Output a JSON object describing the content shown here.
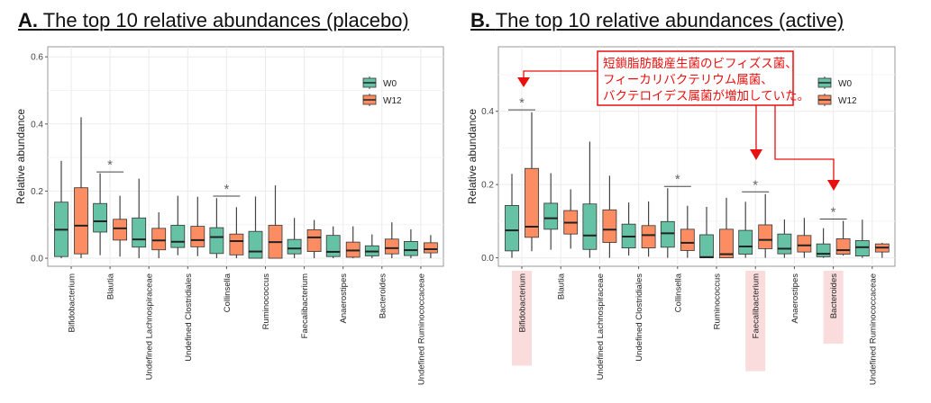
{
  "colors": {
    "W0": "#66c2a5",
    "W12": "#fc8d62",
    "highlight": "#fadcdc",
    "callout": "#e8100e"
  },
  "callout": {
    "lines": [
      "短鎖脂肪酸産生菌のビフィズス菌、",
      "フィーカリバクテリウム属菌、",
      "バクテロイデス属菌が増加していた。"
    ]
  },
  "chart_data": [
    {
      "type": "box",
      "panel_label": "A.",
      "title": "The top 10 relative abundances (placebo)",
      "ylabel": "Relative abundance",
      "ylim": [
        -0.024,
        0.63
      ],
      "yticks": [
        "0.0",
        "0.2",
        "0.4",
        "0.6"
      ],
      "legend": [
        "W0",
        "W12"
      ],
      "legend_position": "top-right",
      "categories": [
        "Bifidobacterium",
        "Blautia",
        "Undefined Lachnospiraceae",
        "Undefined Clostridiales",
        "Collinsella",
        "Ruminococcus",
        "Faecalibacterium",
        "Anaerostipes",
        "Bacteroides",
        "Undefined Ruminococcaceae"
      ],
      "highlighted": [],
      "significance": [
        {
          "category": "Blautia",
          "y": 0.257,
          "label": "*"
        },
        {
          "category": "Collinsella",
          "y": 0.185,
          "label": "*"
        }
      ],
      "series": [
        {
          "name": "W0",
          "boxes": [
            [
              0,
              0.005,
              0.085,
              0.167,
              0.29
            ],
            [
              0.009,
              0.078,
              0.11,
              0.163,
              0.253
            ],
            [
              0,
              0.033,
              0.056,
              0.12,
              0.237
            ],
            [
              0.009,
              0.032,
              0.049,
              0.098,
              0.186
            ],
            [
              0,
              0.014,
              0.063,
              0.091,
              0.179
            ],
            [
              0,
              0,
              0.02,
              0.08,
              0.184
            ],
            [
              0,
              0.013,
              0.029,
              0.056,
              0.12
            ],
            [
              0,
              0.005,
              0.019,
              0.068,
              0.095
            ],
            [
              0,
              0.007,
              0.02,
              0.037,
              0.071
            ],
            [
              0,
              0.008,
              0.024,
              0.05,
              0.086
            ]
          ]
        },
        {
          "name": "W12",
          "boxes": [
            [
              0,
              0.013,
              0.097,
              0.21,
              0.42
            ],
            [
              0.005,
              0.054,
              0.089,
              0.116,
              0.186
            ],
            [
              0,
              0.025,
              0.053,
              0.089,
              0.137
            ],
            [
              0.006,
              0.034,
              0.054,
              0.095,
              0.183
            ],
            [
              0,
              0.01,
              0.051,
              0.072,
              0.152
            ],
            [
              0,
              0,
              0.048,
              0.098,
              0.217
            ],
            [
              0,
              0.02,
              0.062,
              0.085,
              0.114
            ],
            [
              0,
              0.003,
              0.023,
              0.048,
              0.095
            ],
            [
              0,
              0.013,
              0.03,
              0.057,
              0.107
            ],
            [
              0,
              0.016,
              0.027,
              0.046,
              0.069
            ]
          ]
        }
      ]
    },
    {
      "type": "box",
      "panel_label": "B.",
      "title": "The top 10 relative abundances (active)",
      "ylabel": "Relative abundance",
      "ylim": [
        -0.023,
        0.576
      ],
      "yticks": [
        "0.0",
        "0.2",
        "0.4"
      ],
      "legend": [
        "W0",
        "W12"
      ],
      "legend_position": "top-right",
      "categories": [
        "Bifidobacterium",
        "Blautia",
        "Undefined Lachnospiraceae",
        "Undefined Clostridiales",
        "Collinsella",
        "Ruminococcus",
        "Faecalibacterium",
        "Anaerostipes",
        "Bacteroides",
        "Undefined Ruminococcaceae"
      ],
      "highlighted": [
        "Bifidobacterium",
        "Faecalibacterium",
        "Bacteroides"
      ],
      "significance": [
        {
          "category": "Bifidobacterium",
          "y": 0.404,
          "label": "*"
        },
        {
          "category": "Collinsella",
          "y": 0.195,
          "label": "*"
        },
        {
          "category": "Faecalibacterium",
          "y": 0.18,
          "label": "*"
        },
        {
          "category": "Bacteroides",
          "y": 0.106,
          "label": "*"
        }
      ],
      "series": [
        {
          "name": "W0",
          "boxes": [
            [
              0,
              0.019,
              0.075,
              0.143,
              0.229
            ],
            [
              0.022,
              0.078,
              0.108,
              0.149,
              0.231
            ],
            [
              0,
              0.023,
              0.061,
              0.147,
              0.317
            ],
            [
              0.006,
              0.027,
              0.058,
              0.092,
              0.151
            ],
            [
              0,
              0.029,
              0.067,
              0.099,
              0.19
            ],
            [
              0,
              0,
              0.002,
              0.063,
              0.139
            ],
            [
              0,
              0.01,
              0.031,
              0.075,
              0.153
            ],
            [
              0,
              0.011,
              0.025,
              0.065,
              0.105
            ],
            [
              0,
              0.003,
              0.011,
              0.038,
              0.081
            ],
            [
              0,
              0.005,
              0.029,
              0.047,
              0.104
            ]
          ]
        },
        {
          "name": "W12",
          "boxes": [
            [
              0.018,
              0.056,
              0.085,
              0.244,
              0.397
            ],
            [
              0.025,
              0.065,
              0.096,
              0.129,
              0.187
            ],
            [
              0,
              0.042,
              0.077,
              0.131,
              0.224
            ],
            [
              0.003,
              0.027,
              0.062,
              0.088,
              0.154
            ],
            [
              0,
              0.02,
              0.041,
              0.078,
              0.142
            ],
            [
              0,
              0,
              0.01,
              0.078,
              0.164
            ],
            [
              0,
              0.025,
              0.049,
              0.09,
              0.174
            ],
            [
              0,
              0.016,
              0.034,
              0.061,
              0.109
            ],
            [
              0.006,
              0.01,
              0.021,
              0.052,
              0.101
            ],
            [
              0,
              0.016,
              0.028,
              0.038,
              0.041
            ]
          ]
        }
      ]
    }
  ]
}
